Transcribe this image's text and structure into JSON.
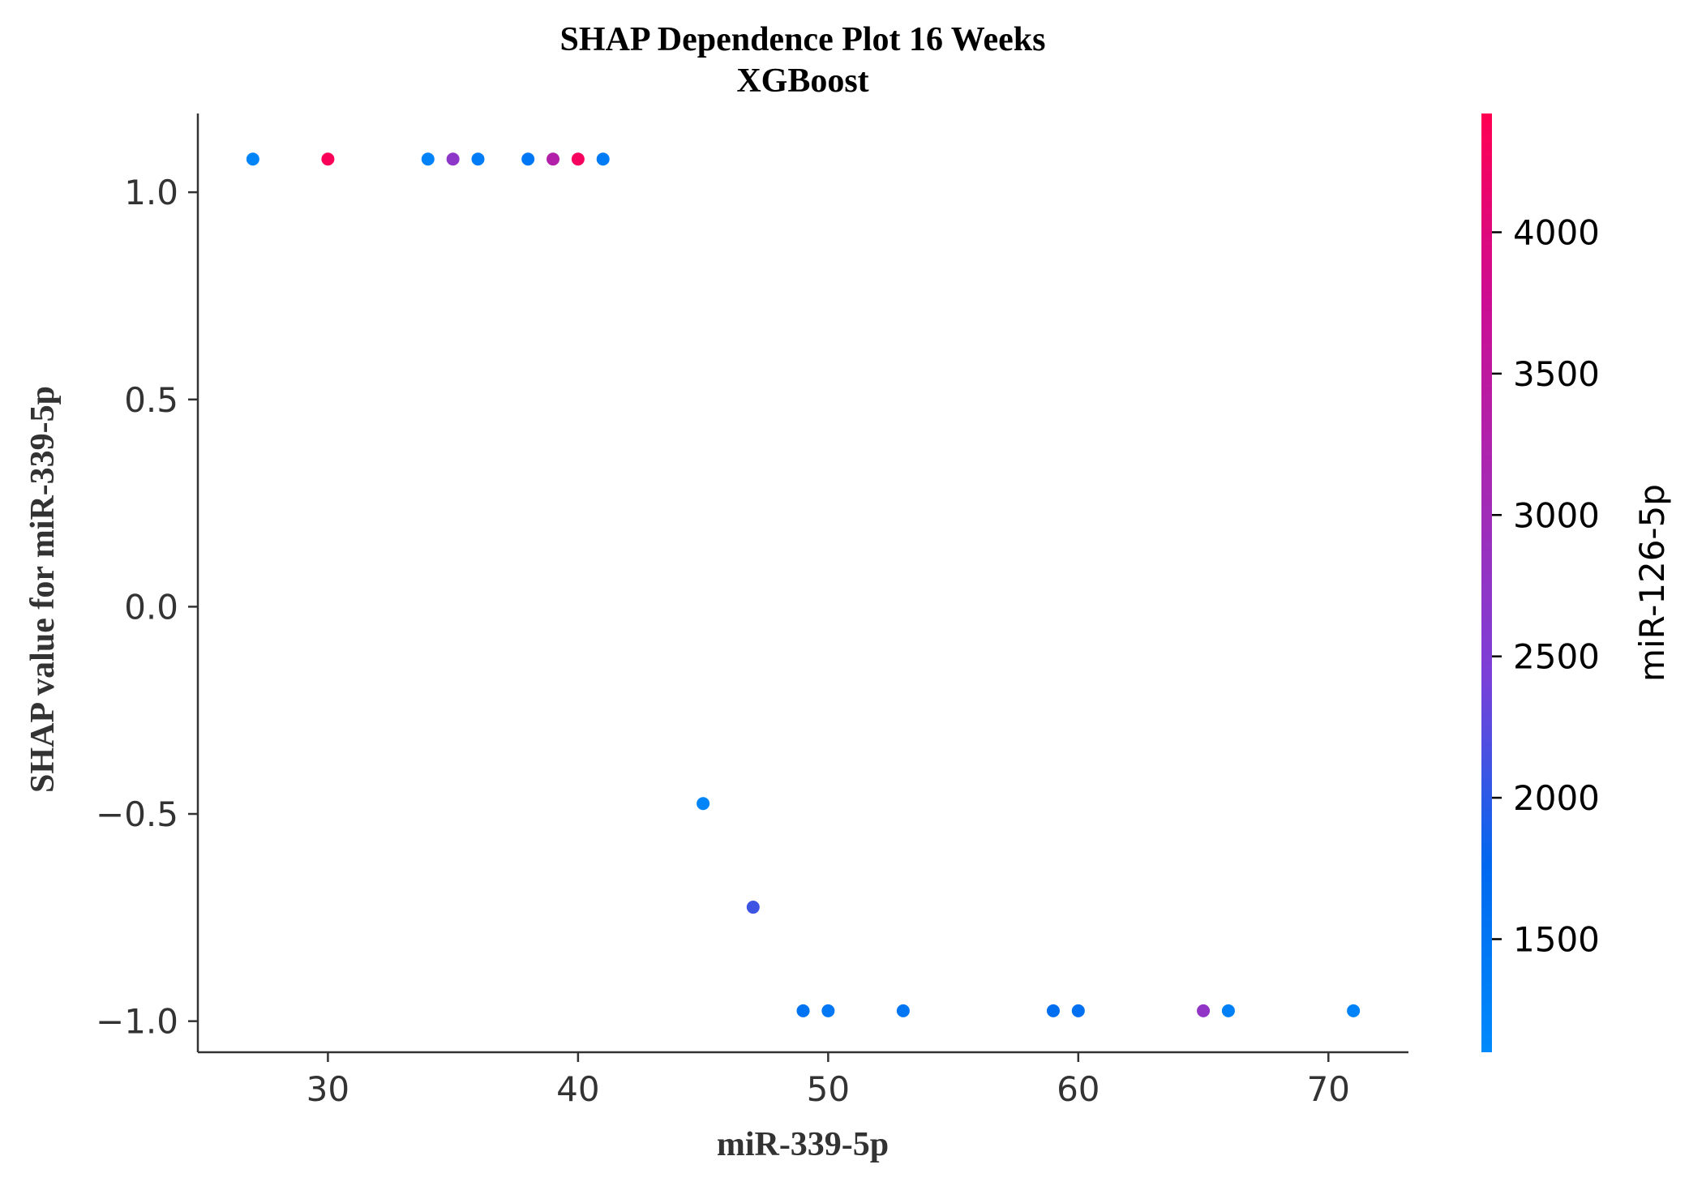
{
  "chart_data": {
    "type": "scatter",
    "title": "SHAP Dependence Plot 16 Weeks",
    "subtitle": "XGBoost",
    "xlabel": "miR-339-5p",
    "ylabel": "SHAP value for miR-339-5p",
    "xlim": [
      24.8,
      73.2
    ],
    "ylim": [
      -1.075,
      1.19
    ],
    "x_ticks": [
      30,
      40,
      50,
      60,
      70
    ],
    "y_ticks": [
      1.0,
      0.5,
      0.0,
      -0.5,
      -1.0
    ],
    "y_tick_labels": [
      "1.0",
      "0.5",
      "0.0",
      "−0.5",
      "−1.0"
    ],
    "grid": false,
    "colorbar": {
      "label": "miR-126-5p",
      "range": [
        1100,
        4420
      ],
      "ticks": [
        1500,
        2000,
        2500,
        3000,
        3500,
        4000
      ],
      "colormap": [
        "#008afb",
        "#0068ef",
        "#7b40d8",
        "#a629b3",
        "#cc0d93",
        "#ff0052"
      ]
    },
    "points": [
      {
        "x": 27,
        "y": 1.08,
        "c": 1200
      },
      {
        "x": 30,
        "y": 1.08,
        "c": 4350
      },
      {
        "x": 34,
        "y": 1.08,
        "c": 1250
      },
      {
        "x": 35,
        "y": 1.08,
        "c": 2700
      },
      {
        "x": 36,
        "y": 1.08,
        "c": 1350
      },
      {
        "x": 38,
        "y": 1.08,
        "c": 1450
      },
      {
        "x": 39,
        "y": 1.08,
        "c": 3300
      },
      {
        "x": 40,
        "y": 1.08,
        "c": 4300
      },
      {
        "x": 41,
        "y": 1.08,
        "c": 1400
      },
      {
        "x": 45,
        "y": -0.475,
        "c": 1200
      },
      {
        "x": 47,
        "y": -0.725,
        "c": 2100
      },
      {
        "x": 49,
        "y": -0.975,
        "c": 1550
      },
      {
        "x": 50,
        "y": -0.975,
        "c": 1450
      },
      {
        "x": 53,
        "y": -0.975,
        "c": 1500
      },
      {
        "x": 59,
        "y": -0.975,
        "c": 1650
      },
      {
        "x": 60,
        "y": -0.975,
        "c": 1600
      },
      {
        "x": 65,
        "y": -0.975,
        "c": 2750
      },
      {
        "x": 66,
        "y": -0.975,
        "c": 1300
      },
      {
        "x": 71,
        "y": -0.975,
        "c": 1250
      }
    ]
  }
}
